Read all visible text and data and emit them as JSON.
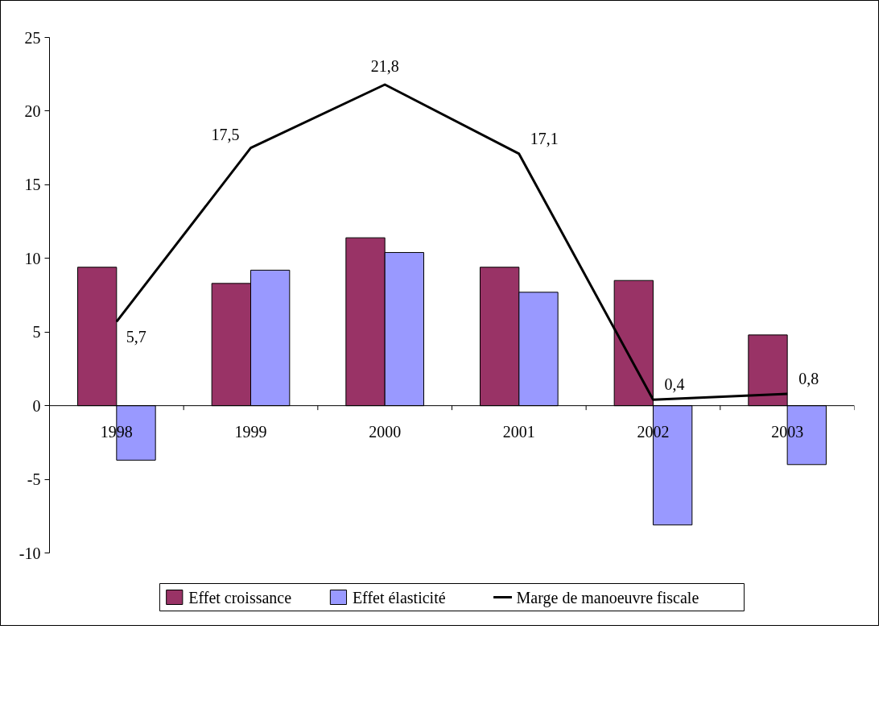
{
  "chart_data": {
    "type": "bar",
    "categories": [
      "1998",
      "1999",
      "2000",
      "2001",
      "2002",
      "2003"
    ],
    "series": [
      {
        "name": "Effet croissance",
        "color": "#993366",
        "values": [
          9.4,
          8.3,
          11.4,
          9.4,
          8.5,
          4.8
        ]
      },
      {
        "name": "Effet élasticité",
        "color": "#9999ff",
        "values": [
          -3.7,
          9.2,
          10.4,
          7.7,
          -8.1,
          -4.0
        ]
      },
      {
        "name": "Marge de manoeuvre  fiscale",
        "type": "line",
        "color": "#000000",
        "values": [
          5.7,
          17.5,
          21.8,
          17.1,
          0.4,
          0.8
        ],
        "value_labels": [
          "5,7",
          "17,5",
          "21,8",
          "17,1",
          "0,4",
          "0,8"
        ]
      }
    ],
    "ylim": [
      -10,
      25
    ],
    "yticks": [
      -10,
      -5,
      0,
      5,
      10,
      15,
      20,
      25
    ],
    "grid": false,
    "legend": "bottom",
    "marker": "none",
    "line_style": "solid"
  }
}
